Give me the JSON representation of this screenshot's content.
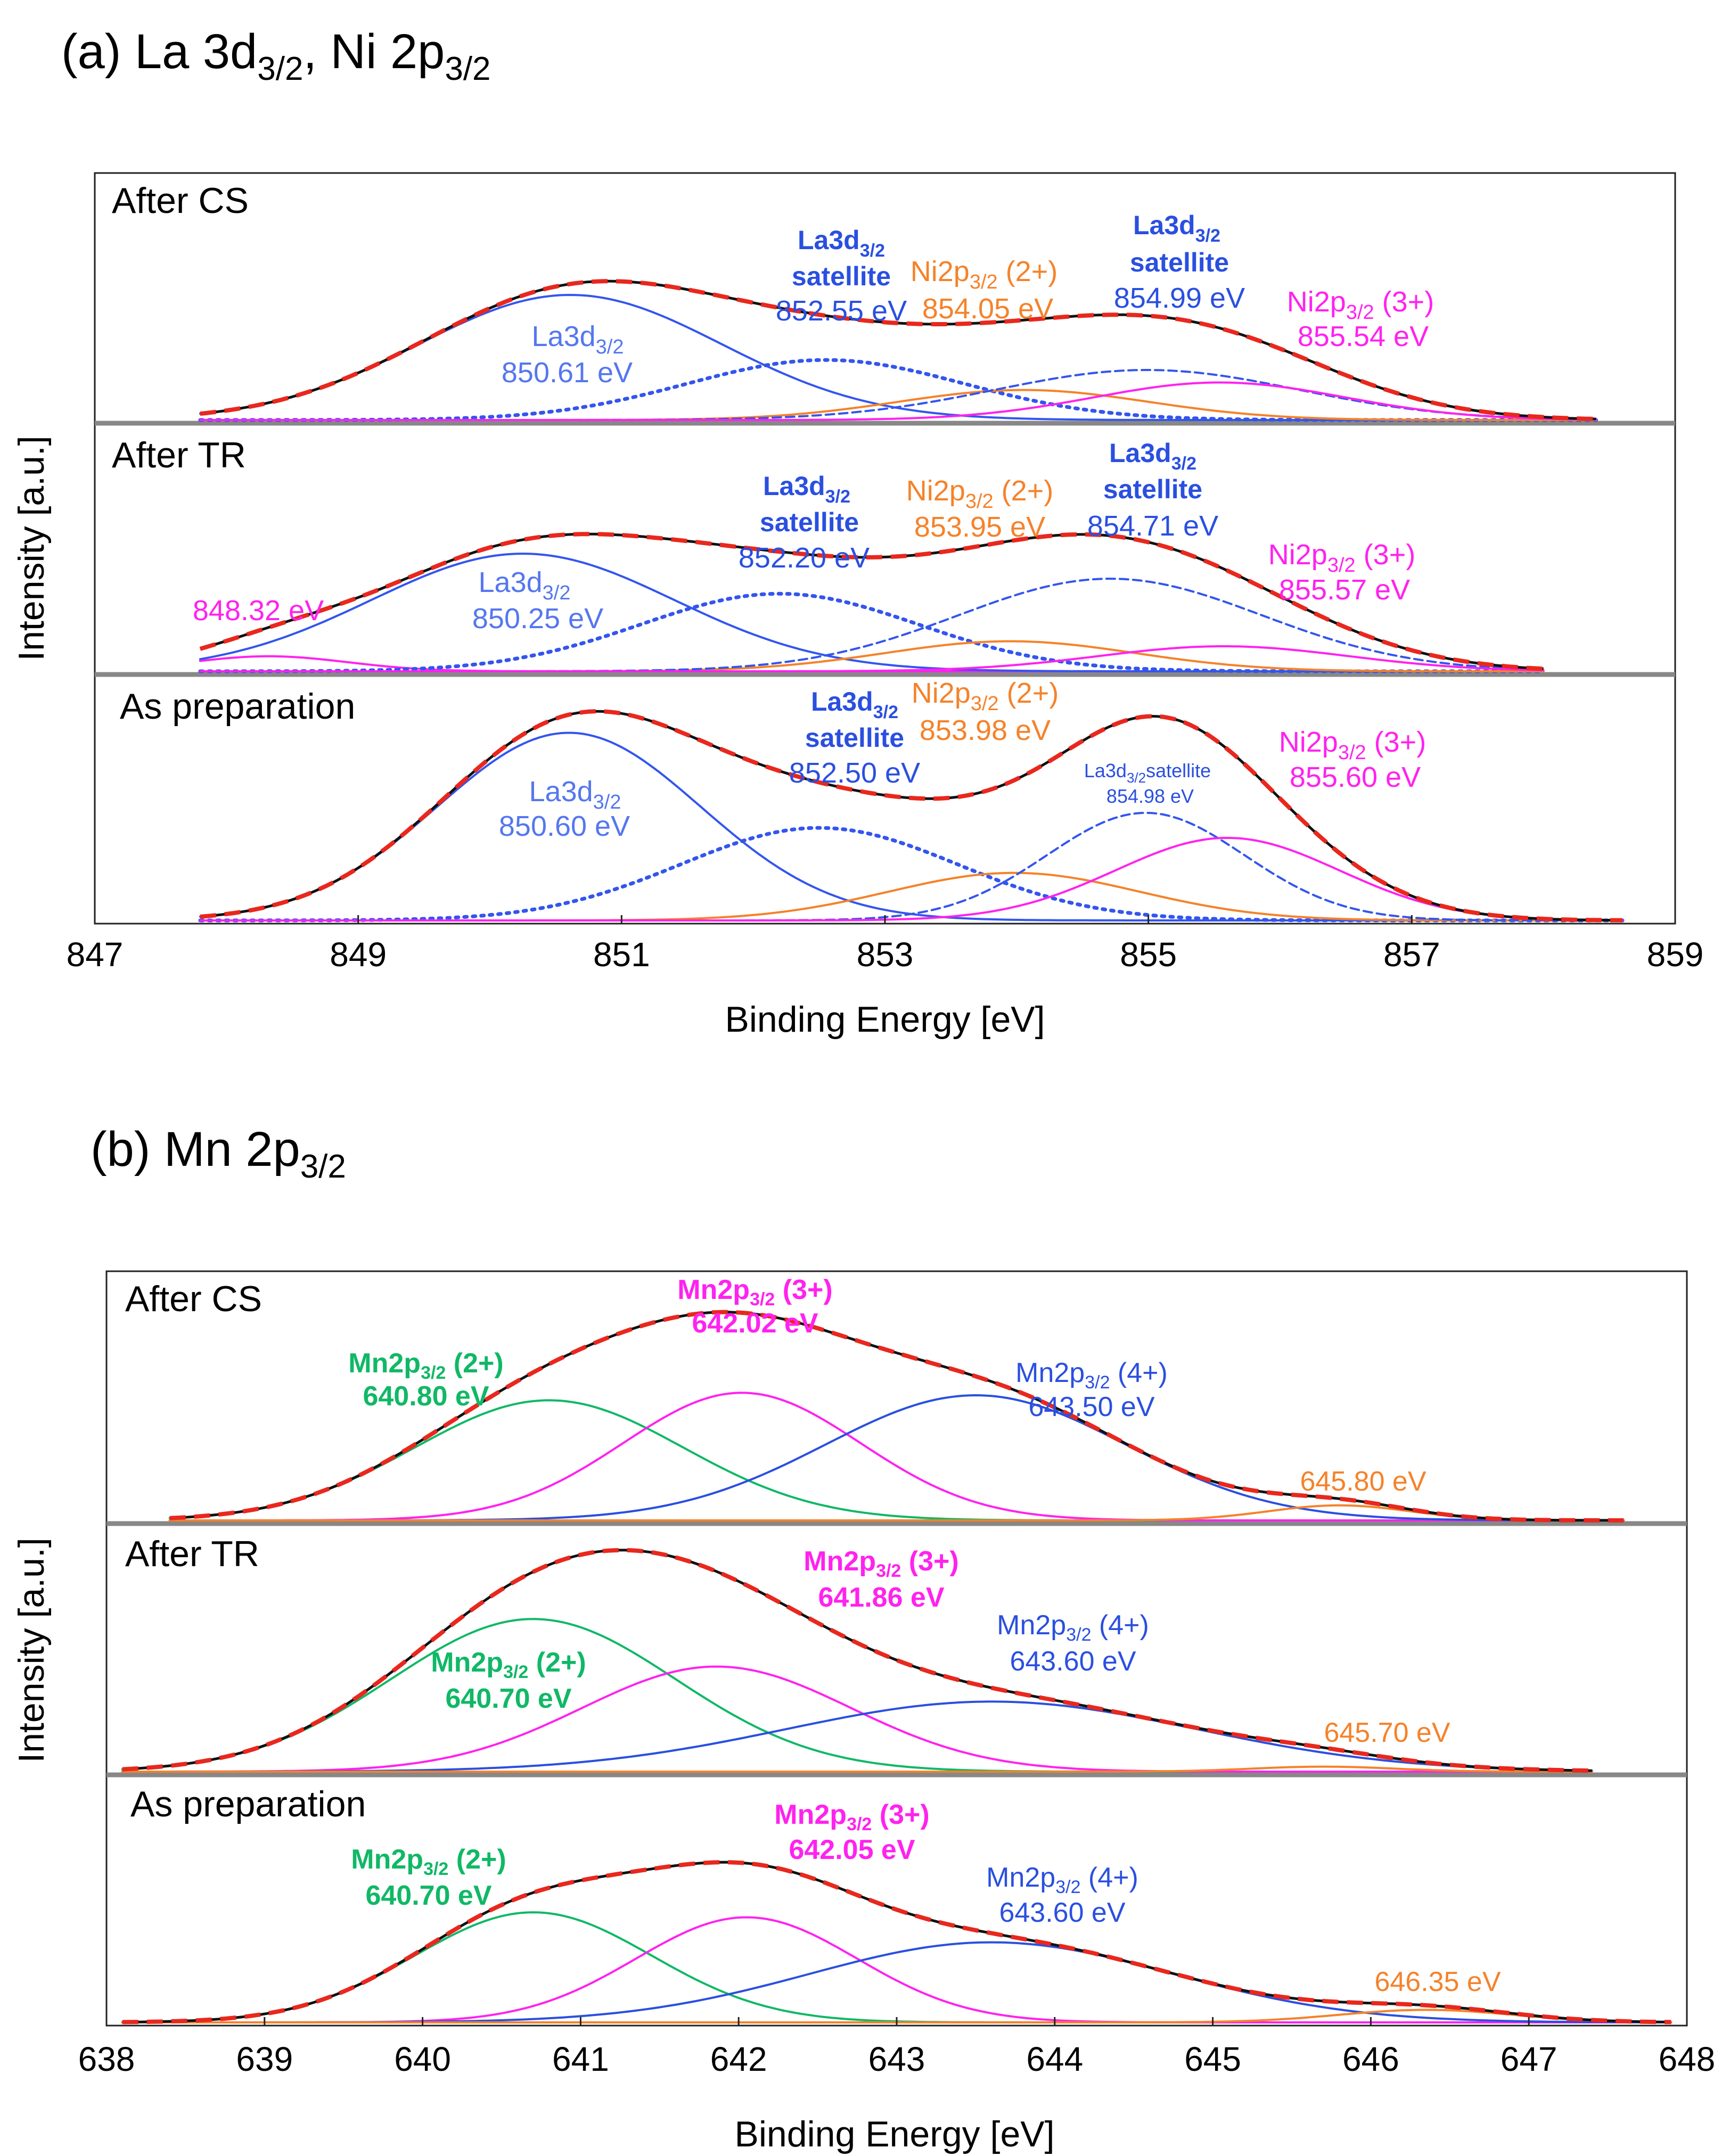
{
  "figure": {
    "panels": [
      {
        "id": "a",
        "title": {
          "prefix": "(a) La 3d",
          "sub1": "3/2",
          "mid": ", Ni 2p",
          "sub2": "3/2"
        },
        "xlabel": "Binding Energy [eV]",
        "ylabel": "Intensity [a.u.]",
        "xticks": [
          "847",
          "849",
          "851",
          "853",
          "855",
          "857",
          "859"
        ],
        "colors": {
          "la": "#3355ee",
          "ni2": "#f5822a",
          "ni3": "#ff22ee",
          "envelope": "#111111",
          "fit": "#e8281e",
          "divider": "#888888"
        }
      },
      {
        "id": "b",
        "title": {
          "prefix": "(b) Mn 2p",
          "sub1": "3/2"
        },
        "xlabel": "Binding Energy [eV]",
        "ylabel": "Intensity [a.u.]",
        "xticks": [
          "638",
          "639",
          "640",
          "641",
          "642",
          "643",
          "644",
          "645",
          "646",
          "647",
          "648"
        ],
        "colors": {
          "mn2": "#10b866",
          "mn3": "#ff22ee",
          "mn4": "#2a4fe0",
          "mn_sat": "#f5822a",
          "envelope": "#111111",
          "fit": "#e8281e",
          "divider": "#888888"
        }
      }
    ],
    "a_subpanels": [
      {
        "name": "After CS",
        "labels": {
          "la_main": {
            "t": "La3d",
            "s": "3/2",
            "e": "850.61  eV"
          },
          "la_sat1": {
            "t": "La3d",
            "s": "3/2",
            "w": "satellite",
            "e": "852.55 eV"
          },
          "ni2": {
            "t": "Ni2p",
            "s": "3/2",
            "x": " (2+)",
            "e": "854.05  eV"
          },
          "la_sat2": {
            "t": "La3d",
            "s": "3/2",
            "w": "satellite",
            "e": "854.99 eV"
          },
          "ni3": {
            "t": "Ni2p",
            "s": "3/2",
            "x": " (3+)",
            "e": "855.54  eV"
          }
        }
      },
      {
        "name": "After TR",
        "labels": {
          "ni_low": {
            "e": "848.32  eV"
          },
          "la_main": {
            "t": "La3d",
            "s": "3/2",
            "e": "850.25  eV"
          },
          "la_sat1": {
            "t": "La3d",
            "s": "3/2",
            "w": "satellite",
            "e": "852.20 eV"
          },
          "ni2": {
            "t": "Ni2p",
            "s": "3/2",
            "x": " (2+)",
            "e": "853.95  eV"
          },
          "la_sat2": {
            "t": "La3d",
            "s": "3/2",
            "w": "satellite",
            "e": "854.71 eV"
          },
          "ni3": {
            "t": "Ni2p",
            "s": "3/2",
            "x": " (3+)",
            "e": "855.57  eV"
          }
        }
      },
      {
        "name": "As preparation",
        "labels": {
          "la_main": {
            "t": "La3d",
            "s": "3/2",
            "e": "850.60  eV"
          },
          "la_sat1": {
            "t": "La3d",
            "s": "3/2",
            "w": "satellite",
            "e": "852.50 eV"
          },
          "ni2": {
            "t": "Ni2p",
            "s": "3/2",
            "x": " (2+)",
            "e": "853.98  eV"
          },
          "la_sat2_small": {
            "t": "La3d",
            "s": "3/2",
            "w": "satellite",
            "e": "854.98 eV"
          },
          "ni3": {
            "t": "Ni2p",
            "s": "3/2",
            "x": " (3+)",
            "e": "855.60  eV"
          }
        }
      }
    ],
    "b_subpanels": [
      {
        "name": "After CS",
        "labels": {
          "mn2": {
            "t": "Mn2p",
            "s": "3/2",
            "x": " (2+)",
            "e": "640.80 eV"
          },
          "mn3": {
            "t": "Mn2p",
            "s": "3/2",
            "x": " (3+)",
            "e": "642.02 eV"
          },
          "mn4": {
            "t": "Mn2p",
            "s": "3/2",
            "x": " (4+)",
            "e": "643.50 eV"
          },
          "sat": {
            "e": "645.80 eV"
          }
        }
      },
      {
        "name": "After TR",
        "labels": {
          "mn2": {
            "t": "Mn2p",
            "s": "3/2",
            "x": " (2+)",
            "e": "640.70 eV"
          },
          "mn3": {
            "t": "Mn2p",
            "s": "3/2",
            "x": " (3+)",
            "e": "641.86 eV"
          },
          "mn4": {
            "t": "Mn2p",
            "s": "3/2",
            "x": " (4+)",
            "e": "643.60 eV"
          },
          "sat": {
            "e": "645.70 eV"
          }
        }
      },
      {
        "name": "As preparation",
        "labels": {
          "mn2": {
            "t": "Mn2p",
            "s": "3/2",
            "x": " (2+)",
            "e": "640.70 eV"
          },
          "mn3": {
            "t": "Mn2p",
            "s": "3/2",
            "x": " (3+)",
            "e": "642.05 eV"
          },
          "mn4": {
            "t": "Mn2p",
            "s": "3/2",
            "x": " (4+)",
            "e": "643.60 eV"
          },
          "sat": {
            "e": "646.35 eV"
          }
        }
      }
    ]
  },
  "chart_data": [
    {
      "type": "line",
      "title": "(a) La 3d3/2, Ni 2p3/2",
      "xlabel": "Binding Energy [eV]",
      "ylabel": "Intensity [a.u.]",
      "xlim": [
        847,
        859
      ],
      "x_ticks": [
        847,
        849,
        851,
        853,
        855,
        857,
        859
      ],
      "line_styles": {
        "La3d3/2": "solid",
        "La3d3/2 satellite 1": "dotted",
        "La3d3/2 satellite 2": "dashed",
        "Ni2p3/2 (2+)": "solid",
        "Ni2p3/2 (3+)": "solid",
        "envelope": "solid black",
        "fit": "dashed red"
      },
      "subplots": [
        {
          "name": "After CS",
          "xrange": [
            847.8,
            858.4
          ],
          "peaks": [
            {
              "name": "La3d3/2",
              "center": 850.61,
              "height": 0.5,
              "sigma": 1.15,
              "color_key": "la",
              "style": "solid"
            },
            {
              "name": "La3d3/2 satellite",
              "center": 852.55,
              "height": 0.24,
              "sigma": 1.05,
              "color_key": "la",
              "style": "dotted"
            },
            {
              "name": "Ni2p3/2 (2+)",
              "center": 854.05,
              "height": 0.12,
              "sigma": 0.95,
              "color_key": "ni2",
              "style": "solid"
            },
            {
              "name": "La3d3/2 satellite",
              "center": 854.99,
              "height": 0.2,
              "sigma": 1.15,
              "color_key": "la",
              "style": "dashed"
            },
            {
              "name": "Ni2p3/2 (3+)",
              "center": 855.54,
              "height": 0.15,
              "sigma": 0.95,
              "color_key": "ni3",
              "style": "solid"
            }
          ]
        },
        {
          "name": "After TR",
          "xrange": [
            847.8,
            858.0
          ],
          "peaks": [
            {
              "name": "Ni2p3/2",
              "center": 848.32,
              "height": 0.06,
              "sigma": 0.6,
              "color_key": "ni3",
              "style": "solid"
            },
            {
              "name": "La3d3/2",
              "center": 850.25,
              "height": 0.47,
              "sigma": 1.15,
              "color_key": "la",
              "style": "solid"
            },
            {
              "name": "La3d3/2 satellite",
              "center": 852.2,
              "height": 0.31,
              "sigma": 1.05,
              "color_key": "la",
              "style": "dotted"
            },
            {
              "name": "Ni2p3/2 (2+)",
              "center": 853.95,
              "height": 0.12,
              "sigma": 0.95,
              "color_key": "ni2",
              "style": "solid"
            },
            {
              "name": "La3d3/2 satellite",
              "center": 854.71,
              "height": 0.37,
              "sigma": 1.15,
              "color_key": "la",
              "style": "dashed"
            },
            {
              "name": "Ni2p3/2 (3+)",
              "center": 855.57,
              "height": 0.1,
              "sigma": 0.95,
              "color_key": "ni3",
              "style": "solid"
            }
          ]
        },
        {
          "name": "As preparation",
          "xrange": [
            847.8,
            858.6
          ],
          "peaks": [
            {
              "name": "La3d3/2",
              "center": 850.6,
              "height": 0.75,
              "sigma": 1.0,
              "color_key": "la",
              "style": "solid"
            },
            {
              "name": "La3d3/2 satellite",
              "center": 852.5,
              "height": 0.37,
              "sigma": 1.05,
              "color_key": "la",
              "style": "dotted"
            },
            {
              "name": "Ni2p3/2 (2+)",
              "center": 853.98,
              "height": 0.19,
              "sigma": 0.95,
              "color_key": "ni2",
              "style": "solid"
            },
            {
              "name": "La3d3/2 satellite",
              "center": 854.98,
              "height": 0.43,
              "sigma": 0.75,
              "color_key": "la",
              "style": "dashed"
            },
            {
              "name": "Ni2p3/2 (3+)",
              "center": 855.6,
              "height": 0.33,
              "sigma": 0.85,
              "color_key": "ni3",
              "style": "solid"
            }
          ]
        }
      ]
    },
    {
      "type": "line",
      "title": "(b) Mn 2p3/2",
      "xlabel": "Binding Energy [eV]",
      "ylabel": "Intensity [a.u.]",
      "xlim": [
        638,
        648
      ],
      "x_ticks": [
        638,
        639,
        640,
        641,
        642,
        643,
        644,
        645,
        646,
        647,
        648
      ],
      "subplots": [
        {
          "name": "After CS",
          "xrange": [
            638.4,
            647.6
          ],
          "peaks": [
            {
              "name": "Mn2p3/2 (2+)",
              "center": 640.8,
              "height": 0.48,
              "sigma": 0.85,
              "color_key": "mn2",
              "style": "solid"
            },
            {
              "name": "Mn2p3/2 (3+)",
              "center": 642.02,
              "height": 0.51,
              "sigma": 0.75,
              "color_key": "mn3",
              "style": "solid"
            },
            {
              "name": "Mn2p3/2 (4+)",
              "center": 643.5,
              "height": 0.5,
              "sigma": 0.95,
              "color_key": "mn4",
              "style": "solid"
            },
            {
              "name": "satellite",
              "center": 645.8,
              "height": 0.06,
              "sigma": 0.45,
              "color_key": "mn_sat",
              "style": "solid"
            }
          ]
        },
        {
          "name": "After TR",
          "xrange": [
            638.1,
            647.4
          ],
          "peaks": [
            {
              "name": "Mn2p3/2 (2+)",
              "center": 640.7,
              "height": 0.61,
              "sigma": 0.9,
              "color_key": "mn2",
              "style": "solid"
            },
            {
              "name": "Mn2p3/2 (3+)",
              "center": 641.86,
              "height": 0.42,
              "sigma": 0.85,
              "color_key": "mn3",
              "style": "solid"
            },
            {
              "name": "Mn2p3/2 (4+)",
              "center": 643.6,
              "height": 0.28,
              "sigma": 1.3,
              "color_key": "mn4",
              "style": "solid"
            },
            {
              "name": "satellite",
              "center": 645.7,
              "height": 0.02,
              "sigma": 0.45,
              "color_key": "mn_sat",
              "style": "solid"
            }
          ]
        },
        {
          "name": "As preparation",
          "xrange": [
            638.1,
            647.9
          ],
          "peaks": [
            {
              "name": "Mn2p3/2 (2+)",
              "center": 640.7,
              "height": 0.44,
              "sigma": 0.75,
              "color_key": "mn2",
              "style": "solid"
            },
            {
              "name": "Mn2p3/2 (3+)",
              "center": 642.05,
              "height": 0.42,
              "sigma": 0.7,
              "color_key": "mn3",
              "style": "solid"
            },
            {
              "name": "Mn2p3/2 (4+)",
              "center": 643.6,
              "height": 0.32,
              "sigma": 1.15,
              "color_key": "mn4",
              "style": "solid"
            },
            {
              "name": "satellite",
              "center": 646.35,
              "height": 0.05,
              "sigma": 0.55,
              "color_key": "mn_sat",
              "style": "solid"
            }
          ]
        }
      ]
    }
  ]
}
